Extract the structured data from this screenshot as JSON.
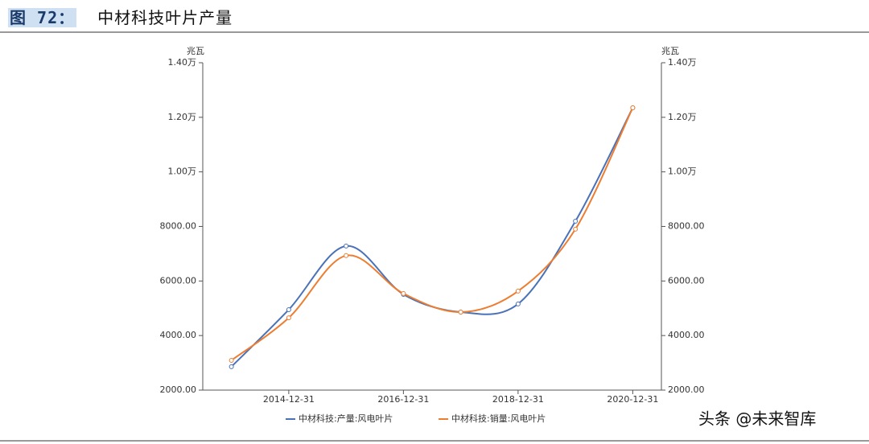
{
  "chart_data": {
    "type": "line",
    "figure_label": "图 72：",
    "title": "中材科技叶片产量",
    "y_unit": "兆瓦",
    "y2_unit": "兆瓦",
    "categories": [
      null,
      "2014-12-31",
      null,
      "2016-12-31",
      null,
      "2018-12-31",
      null,
      "2020-12-31"
    ],
    "series": [
      {
        "name": "中材科技:产量:风电叶片",
        "color": "#4a72b8",
        "values": [
          2860,
          4950,
          7280,
          5510,
          4860,
          5160,
          8190,
          12350
        ]
      },
      {
        "name": "中材科技:销量:风电叶片",
        "color": "#ed7d31",
        "values": [
          3090,
          4650,
          6930,
          5540,
          4860,
          5630,
          7900,
          12350
        ]
      }
    ],
    "ylim": [
      2000,
      14000
    ],
    "yticks": [
      {
        "value": 2000,
        "label": "2000.00"
      },
      {
        "value": 4000,
        "label": "4000.00"
      },
      {
        "value": 6000,
        "label": "6000.00"
      },
      {
        "value": 8000,
        "label": "8000.00"
      },
      {
        "value": 10000,
        "label": "1.00万"
      },
      {
        "value": 12000,
        "label": "1.20万"
      },
      {
        "value": 14000,
        "label": "1.40万"
      }
    ],
    "y2lim": [
      2000,
      14000
    ],
    "y2ticks": [
      {
        "value": 2000,
        "label": "2000.00"
      },
      {
        "value": 4000,
        "label": "4000.00"
      },
      {
        "value": 6000,
        "label": "6000.00"
      },
      {
        "value": 8000,
        "label": "8000.00"
      },
      {
        "value": 10000,
        "label": "1.00万"
      },
      {
        "value": 12000,
        "label": "1.20万"
      },
      {
        "value": 14000,
        "label": "1.40万"
      }
    ],
    "watermark": "头条 @未来智库"
  }
}
